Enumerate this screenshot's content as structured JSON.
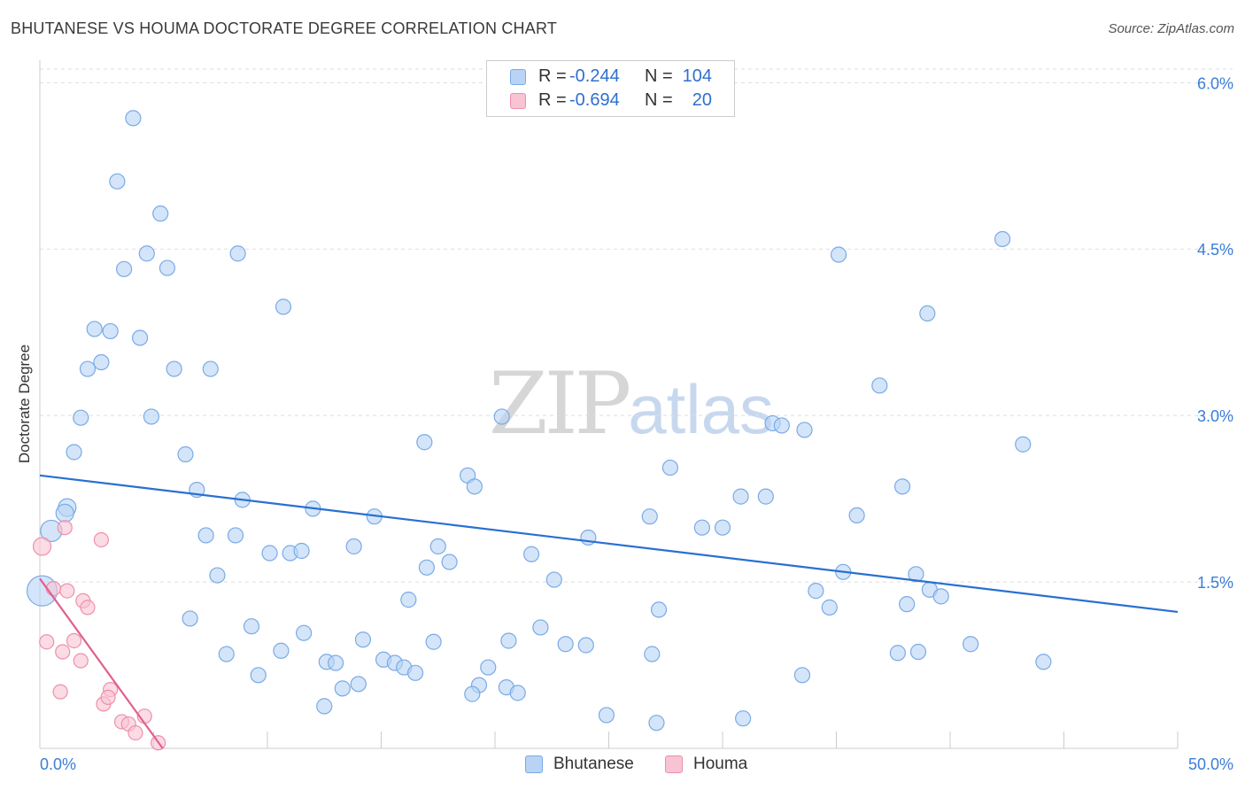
{
  "title": "BHUTANESE VS HOUMA DOCTORATE DEGREE CORRELATION CHART",
  "source": "Source: ZipAtlas.com",
  "watermark": {
    "zip": "ZIP",
    "atlas": "atlas"
  },
  "legend": {
    "r_label": "R =",
    "n_label": "N =",
    "rows": [
      {
        "name": "Bhutanese",
        "r": "-0.244",
        "n": "104"
      },
      {
        "name": "Houma",
        "r": "-0.694",
        "n": "20"
      }
    ]
  },
  "colors": {
    "blue_fill": "#b8d3f5",
    "blue_stroke": "#7aaae6",
    "blue_line": "#2a6fd1",
    "pink_fill": "#f8c3d2",
    "pink_stroke": "#ee8fab",
    "pink_line": "#e0608f",
    "grid": "#dddddd",
    "tick_label": "#3b7dd8"
  },
  "chart_data": {
    "type": "scatter",
    "title": "BHUTANESE VS HOUMA DOCTORATE DEGREE CORRELATION CHART",
    "xlabel": "",
    "ylabel": "Doctorate Degree",
    "xlim": [
      0,
      50
    ],
    "ylim": [
      0,
      6.25
    ],
    "x_tick_labels": [
      "0.0%",
      "50.0%"
    ],
    "y_ticks": [
      1.5,
      3.0,
      4.5,
      6.0
    ],
    "y_tick_labels": [
      "1.5%",
      "3.0%",
      "4.5%",
      "6.0%"
    ],
    "grid": "horizontal dashed",
    "legend_position": "bottom-center",
    "series": [
      {
        "name": "Bhutanese",
        "points": [
          [
            4.1,
            5.68
          ],
          [
            3.4,
            5.11
          ],
          [
            5.3,
            4.82
          ],
          [
            4.7,
            4.46
          ],
          [
            3.7,
            4.32
          ],
          [
            5.6,
            4.33
          ],
          [
            8.7,
            4.46
          ],
          [
            10.7,
            3.98
          ],
          [
            2.4,
            3.78
          ],
          [
            3.1,
            3.76
          ],
          [
            4.4,
            3.7
          ],
          [
            2.7,
            3.48
          ],
          [
            2.1,
            3.42
          ],
          [
            5.9,
            3.42
          ],
          [
            7.5,
            3.42
          ],
          [
            1.8,
            2.98
          ],
          [
            4.9,
            2.99
          ],
          [
            1.5,
            2.67
          ],
          [
            6.4,
            2.65
          ],
          [
            6.9,
            2.33
          ],
          [
            8.9,
            2.24
          ],
          [
            12.0,
            2.16
          ],
          [
            14.7,
            2.09
          ],
          [
            18.8,
            2.46
          ],
          [
            19.1,
            2.36
          ],
          [
            20.3,
            2.99
          ],
          [
            16.9,
            2.76
          ],
          [
            1.2,
            2.17
          ],
          [
            1.1,
            2.12
          ],
          [
            0.5,
            1.96
          ],
          [
            0.1,
            1.42
          ],
          [
            7.3,
            1.92
          ],
          [
            8.6,
            1.92
          ],
          [
            10.1,
            1.76
          ],
          [
            11.0,
            1.76
          ],
          [
            11.5,
            1.78
          ],
          [
            13.8,
            1.82
          ],
          [
            17.5,
            1.82
          ],
          [
            17.0,
            1.63
          ],
          [
            18.0,
            1.68
          ],
          [
            21.6,
            1.75
          ],
          [
            22.6,
            1.52
          ],
          [
            24.1,
            1.9
          ],
          [
            16.2,
            1.34
          ],
          [
            7.8,
            1.56
          ],
          [
            6.6,
            1.17
          ],
          [
            9.3,
            1.1
          ],
          [
            11.6,
            1.04
          ],
          [
            14.2,
            0.98
          ],
          [
            17.3,
            0.96
          ],
          [
            20.6,
            0.97
          ],
          [
            22.0,
            1.09
          ],
          [
            23.1,
            0.94
          ],
          [
            24.0,
            0.93
          ],
          [
            8.2,
            0.85
          ],
          [
            10.6,
            0.88
          ],
          [
            12.6,
            0.78
          ],
          [
            13.0,
            0.77
          ],
          [
            15.1,
            0.8
          ],
          [
            15.6,
            0.77
          ],
          [
            16.0,
            0.73
          ],
          [
            16.5,
            0.68
          ],
          [
            19.7,
            0.73
          ],
          [
            9.6,
            0.66
          ],
          [
            13.3,
            0.54
          ],
          [
            14.0,
            0.58
          ],
          [
            19.3,
            0.57
          ],
          [
            19.0,
            0.49
          ],
          [
            20.5,
            0.55
          ],
          [
            21.0,
            0.5
          ],
          [
            12.5,
            0.38
          ],
          [
            24.9,
            0.3
          ],
          [
            27.1,
            0.23
          ],
          [
            30.9,
            0.27
          ],
          [
            26.9,
            0.85
          ],
          [
            27.2,
            1.25
          ],
          [
            26.8,
            2.09
          ],
          [
            27.7,
            2.53
          ],
          [
            29.1,
            1.99
          ],
          [
            30.0,
            1.99
          ],
          [
            30.8,
            2.27
          ],
          [
            31.9,
            2.27
          ],
          [
            32.2,
            2.93
          ],
          [
            32.6,
            2.91
          ],
          [
            33.6,
            2.87
          ],
          [
            34.1,
            1.42
          ],
          [
            34.7,
            1.27
          ],
          [
            35.3,
            1.59
          ],
          [
            35.1,
            4.45
          ],
          [
            35.9,
            2.1
          ],
          [
            36.9,
            3.27
          ],
          [
            37.9,
            2.36
          ],
          [
            37.7,
            0.86
          ],
          [
            38.1,
            1.3
          ],
          [
            38.6,
            0.87
          ],
          [
            38.5,
            1.57
          ],
          [
            39.1,
            1.43
          ],
          [
            39.0,
            3.92
          ],
          [
            39.6,
            1.37
          ],
          [
            40.9,
            0.94
          ],
          [
            42.3,
            4.59
          ],
          [
            43.2,
            2.74
          ],
          [
            44.1,
            0.78
          ],
          [
            33.5,
            0.66
          ]
        ]
      },
      {
        "name": "Houma",
        "points": [
          [
            0.1,
            1.82
          ],
          [
            0.6,
            1.44
          ],
          [
            1.1,
            1.99
          ],
          [
            1.2,
            1.42
          ],
          [
            2.7,
            1.88
          ],
          [
            1.0,
            0.87
          ],
          [
            1.5,
            0.97
          ],
          [
            1.8,
            0.79
          ],
          [
            0.3,
            0.96
          ],
          [
            0.9,
            0.51
          ],
          [
            1.9,
            1.33
          ],
          [
            2.1,
            1.27
          ],
          [
            3.1,
            0.53
          ],
          [
            2.8,
            0.4
          ],
          [
            3.0,
            0.46
          ],
          [
            3.6,
            0.24
          ],
          [
            3.9,
            0.22
          ],
          [
            4.6,
            0.29
          ],
          [
            4.2,
            0.14
          ],
          [
            5.2,
            0.05
          ]
        ]
      }
    ],
    "trend_lines": [
      {
        "name": "Bhutanese",
        "from": [
          0,
          2.46
        ],
        "to": [
          50,
          1.23
        ]
      },
      {
        "name": "Houma",
        "from": [
          0,
          1.53
        ],
        "to": [
          5.4,
          0.0
        ]
      }
    ]
  }
}
